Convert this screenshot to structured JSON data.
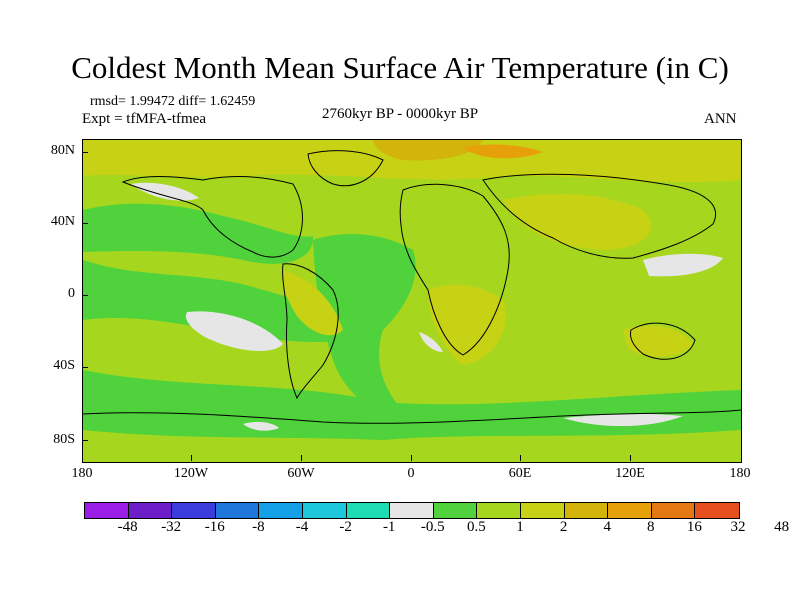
{
  "title": "Coldest Month Mean Surface Air Temperature (in C)",
  "stats": "rmsd= 1.99472 diff= 1.62459",
  "experiment": "Expt = tfMFA-tfmea",
  "period": "2760kyr BP - 0000kyr BP",
  "season": "ANN",
  "y_ticks": [
    "80N",
    "40N",
    "0",
    "40S",
    "80S"
  ],
  "x_ticks": [
    "180",
    "120W",
    "60W",
    "0",
    "60E",
    "120E",
    "180"
  ],
  "colorbar": {
    "colors": [
      "#9a1ee6",
      "#6e1ec8",
      "#3c3cdc",
      "#1e78dc",
      "#14a0e6",
      "#1ec8dc",
      "#1edcb4",
      "#e6e6e6",
      "#50d23c",
      "#a6d71e",
      "#c8d214",
      "#d2b40a",
      "#e6a00a",
      "#e67814",
      "#e6501e"
    ],
    "labels": [
      "-48",
      "-32",
      "-16",
      "-8",
      "-4",
      "-2",
      "-1",
      "-0.5",
      "0.5",
      "1",
      "2",
      "4",
      "8",
      "16",
      "32",
      "48"
    ]
  }
}
